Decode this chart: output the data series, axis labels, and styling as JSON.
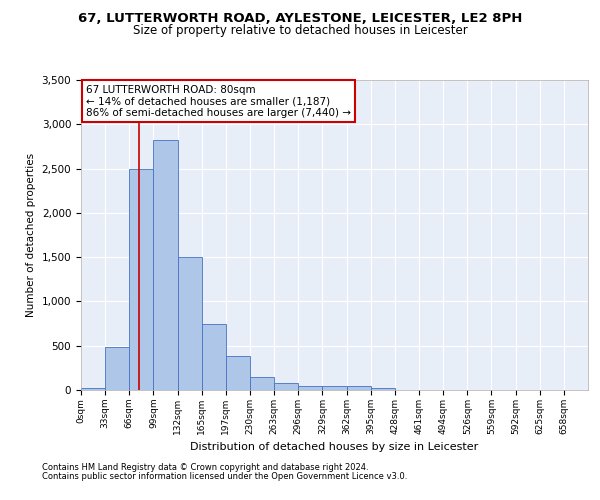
{
  "title_line1": "67, LUTTERWORTH ROAD, AYLESTONE, LEICESTER, LE2 8PH",
  "title_line2": "Size of property relative to detached houses in Leicester",
  "xlabel": "Distribution of detached houses by size in Leicester",
  "ylabel": "Number of detached properties",
  "bar_categories": [
    "0sqm",
    "33sqm",
    "66sqm",
    "99sqm",
    "132sqm",
    "165sqm",
    "197sqm",
    "230sqm",
    "263sqm",
    "296sqm",
    "329sqm",
    "362sqm",
    "395sqm",
    "428sqm",
    "461sqm",
    "494sqm",
    "526sqm",
    "559sqm",
    "592sqm",
    "625sqm",
    "658sqm"
  ],
  "bar_heights": [
    25,
    480,
    2500,
    2820,
    1500,
    750,
    380,
    150,
    80,
    50,
    40,
    40,
    25,
    0,
    0,
    0,
    0,
    0,
    0,
    0,
    0
  ],
  "bar_color": "#aec6e8",
  "bar_edge_color": "#4472c4",
  "bar_width": 1.0,
  "red_line_x": 2.42,
  "annotation_text": "67 LUTTERWORTH ROAD: 80sqm\n← 14% of detached houses are smaller (1,187)\n86% of semi-detached houses are larger (7,440) →",
  "annotation_box_color": "#ffffff",
  "annotation_box_edge": "#cc0000",
  "ylim": [
    0,
    3500
  ],
  "yticks": [
    0,
    500,
    1000,
    1500,
    2000,
    2500,
    3000,
    3500
  ],
  "background_color": "#e8eef8",
  "grid_color": "#ffffff",
  "footer_line1": "Contains HM Land Registry data © Crown copyright and database right 2024.",
  "footer_line2": "Contains public sector information licensed under the Open Government Licence v3.0."
}
